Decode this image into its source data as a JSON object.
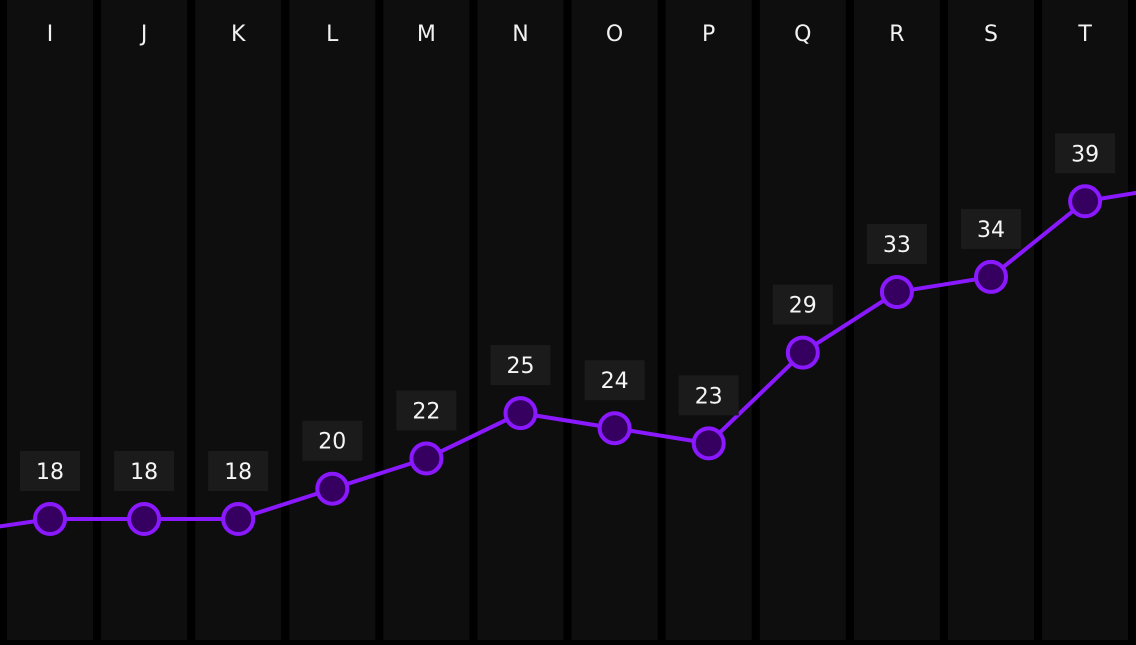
{
  "chart_data": {
    "type": "line",
    "categories": [
      "I",
      "J",
      "K",
      "L",
      "M",
      "N",
      "O",
      "P",
      "Q",
      "R",
      "S",
      "T"
    ],
    "values": [
      18,
      18,
      18,
      20,
      22,
      25,
      24,
      23,
      29,
      33,
      34,
      39
    ],
    "trailing_line": {
      "left_value": 18,
      "right_value": 39.6
    },
    "colors": {
      "background": "#000000",
      "column": "#0e0e0f",
      "line": "#8a19ff",
      "marker_fill": "#35005f",
      "label_box": "#1b1b1b",
      "text": "#f2f2f2"
    },
    "grid": false,
    "legend": "none"
  }
}
